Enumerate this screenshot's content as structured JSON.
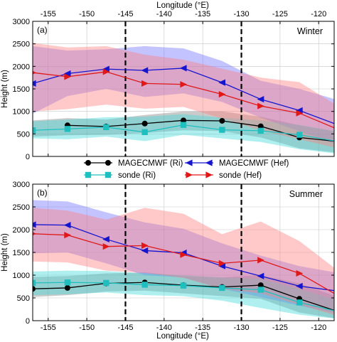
{
  "figure": {
    "top_axis_label": "Longitude (°E)",
    "bottom_axis_label": "Longitude (°E)",
    "legend": {
      "entries": [
        {
          "label": "MAGECMWF (Ri)",
          "color": "#000000",
          "marker": "circle"
        },
        {
          "label": "MAGECMWF (Hef)",
          "color": "#1515d0",
          "marker": "left-triangle"
        },
        {
          "label": "sonde (Ri)",
          "color": "#20bfbf",
          "marker": "square"
        },
        {
          "label": "sonde (Hef)",
          "color": "#e01818",
          "marker": "right-triangle"
        }
      ]
    }
  },
  "chart_data": [
    {
      "type": "line",
      "panel_label": "(a)",
      "season_label": "Winter",
      "xlabel": "Longitude (°E)",
      "ylabel": "Height (m)",
      "xlim": [
        -157,
        -118
      ],
      "ylim": [
        0,
        3000
      ],
      "xticks": [
        -155,
        -150,
        -145,
        -140,
        -135,
        -130,
        -125,
        -120
      ],
      "yticks": [
        0,
        500,
        1000,
        1500,
        2000,
        2500,
        3000
      ],
      "grid": true,
      "vertical_dashed_lines": [
        -145,
        -130
      ],
      "series": [
        {
          "name": "MAGECMWF (Ri)",
          "color": "#000000",
          "marker": "circle",
          "x": [
            -152.5,
            -147.5,
            -142.5,
            -137.5,
            -132.5,
            -127.5,
            -122.5,
            -117.5
          ],
          "values": [
            690,
            665,
            730,
            800,
            790,
            670,
            420,
            330
          ],
          "band_x": [
            -157,
            -152.5,
            -147.5,
            -142.5,
            -137.5,
            -132.5,
            -127.5,
            -122.5,
            -117.5
          ],
          "band_lower": [
            440,
            470,
            480,
            520,
            580,
            560,
            420,
            180,
            80
          ],
          "band_upper": [
            800,
            850,
            820,
            920,
            1000,
            1000,
            880,
            690,
            540
          ],
          "band_color": "#808080"
        },
        {
          "name": "MAGECMWF (Hef)",
          "color": "#1515d0",
          "marker": "left-triangle",
          "x": [
            -157,
            -152.5,
            -147.5,
            -142.5,
            -137.5,
            -132.5,
            -127.5,
            -122.5,
            -117.5
          ],
          "values": [
            1620,
            1840,
            1940,
            1910,
            1960,
            1640,
            1270,
            1020,
            700
          ],
          "band_x": [
            -157,
            -152.5,
            -147.5,
            -142.5,
            -137.5,
            -132.5,
            -127.5,
            -122.5,
            -117.5
          ],
          "band_lower": [
            950,
            1340,
            1500,
            1320,
            1400,
            1210,
            860,
            560,
            250
          ],
          "band_upper": [
            2450,
            2350,
            2380,
            2450,
            2400,
            2120,
            1680,
            1500,
            1250
          ],
          "band_color": "#6f6fff"
        },
        {
          "name": "sonde (Ri)",
          "color": "#20bfbf",
          "marker": "square",
          "x": [
            -157,
            -152.5,
            -147.5,
            -142.5,
            -137.5,
            -132.5,
            -127.5,
            -122.5,
            -117.5
          ],
          "values": [
            580,
            610,
            650,
            540,
            700,
            590,
            570,
            480,
            330
          ],
          "band_x": [
            -157,
            -152.5,
            -147.5,
            -142.5,
            -137.5,
            -132.5,
            -127.5,
            -122.5,
            -117.5
          ],
          "band_lower": [
            400,
            380,
            440,
            340,
            480,
            400,
            320,
            160,
            60
          ],
          "band_upper": [
            780,
            820,
            870,
            880,
            940,
            860,
            800,
            700,
            560
          ],
          "band_color": "#40d8d8"
        },
        {
          "name": "sonde (Hef)",
          "color": "#e01818",
          "marker": "right-triangle",
          "x": [
            -157,
            -152.5,
            -147.5,
            -142.5,
            -137.5,
            -132.5,
            -127.5,
            -122.5,
            -117.5
          ],
          "values": [
            1860,
            1770,
            1880,
            1620,
            1600,
            1380,
            1120,
            960,
            600
          ],
          "band_x": [
            -157,
            -152.5,
            -147.5,
            -142.5,
            -137.5,
            -132.5,
            -127.5,
            -122.5,
            -117.5
          ],
          "band_lower": [
            1000,
            1050,
            1150,
            1060,
            1100,
            840,
            580,
            380,
            180
          ],
          "band_upper": [
            2520,
            2420,
            2450,
            2260,
            2150,
            1950,
            1750,
            1650,
            1120
          ],
          "band_color": "#ff7f7f"
        }
      ]
    },
    {
      "type": "line",
      "panel_label": "(b)",
      "season_label": "Summer",
      "xlabel": "Longitude (°E)",
      "ylabel": "Height (m)",
      "xlim": [
        -157,
        -118
      ],
      "ylim": [
        0,
        3000
      ],
      "xticks": [
        -155,
        -150,
        -145,
        -140,
        -135,
        -130,
        -125,
        -120
      ],
      "yticks": [
        0,
        500,
        1000,
        1500,
        2000,
        2500,
        3000
      ],
      "grid": true,
      "vertical_dashed_lines": [
        -145,
        -130
      ],
      "series": [
        {
          "name": "MAGECMWF (Ri)",
          "color": "#000000",
          "marker": "circle",
          "x": [
            -157,
            -152.5,
            -147.5,
            -142.5,
            -137.5,
            -132.5,
            -127.5,
            -122.5,
            -117.5
          ],
          "values": [
            700,
            720,
            820,
            840,
            780,
            740,
            780,
            480,
            200
          ],
          "band_x": [
            -157,
            -152.5,
            -147.5,
            -142.5,
            -137.5,
            -132.5,
            -127.5,
            -122.5,
            -117.5
          ],
          "band_lower": [
            520,
            560,
            640,
            660,
            600,
            540,
            480,
            180,
            40
          ],
          "band_upper": [
            960,
            980,
            1040,
            1060,
            980,
            950,
            1000,
            820,
            520
          ],
          "band_color": "#808080"
        },
        {
          "name": "MAGECMWF (Hef)",
          "color": "#1515d0",
          "marker": "left-triangle",
          "x": [
            -157,
            -152.5,
            -147.5,
            -142.5,
            -137.5,
            -132.5,
            -127.5,
            -122.5,
            -117.5
          ],
          "values": [
            2110,
            2100,
            1790,
            1540,
            1490,
            1200,
            980,
            760,
            650
          ],
          "band_x": [
            -157,
            -152.5,
            -147.5,
            -142.5,
            -137.5,
            -132.5,
            -127.5,
            -122.5,
            -117.5
          ],
          "band_lower": [
            1480,
            1500,
            1260,
            1000,
            950,
            700,
            520,
            330,
            150
          ],
          "band_upper": [
            2650,
            2620,
            2380,
            2160,
            2020,
            1700,
            1430,
            1200,
            1050
          ],
          "band_color": "#6f6fff"
        },
        {
          "name": "sonde (Ri)",
          "color": "#20bfbf",
          "marker": "square",
          "x": [
            -157,
            -152.5,
            -147.5,
            -142.5,
            -137.5,
            -132.5,
            -127.5,
            -122.5,
            -117.5
          ],
          "values": [
            830,
            840,
            830,
            790,
            770,
            720,
            680,
            400,
            200
          ],
          "band_x": [
            -157,
            -152.5,
            -147.5,
            -142.5,
            -137.5,
            -132.5,
            -127.5,
            -122.5,
            -117.5
          ],
          "band_lower": [
            560,
            580,
            620,
            560,
            540,
            440,
            280,
            130,
            40
          ],
          "band_upper": [
            1080,
            1100,
            1090,
            1040,
            1000,
            950,
            920,
            700,
            450
          ],
          "band_color": "#40d8d8"
        },
        {
          "name": "sonde (Hef)",
          "color": "#e01818",
          "marker": "right-triangle",
          "x": [
            -157,
            -152.5,
            -147.5,
            -142.5,
            -137.5,
            -132.5,
            -127.5,
            -122.5,
            -117.5
          ],
          "values": [
            1910,
            1880,
            1630,
            1650,
            1450,
            1260,
            1330,
            1040,
            550
          ],
          "band_x": [
            -157,
            -152.5,
            -147.5,
            -142.5,
            -137.5,
            -132.5,
            -127.5,
            -122.5,
            -117.5
          ],
          "band_lower": [
            1300,
            1280,
            1100,
            1050,
            940,
            700,
            600,
            350,
            100
          ],
          "band_upper": [
            2480,
            2420,
            2220,
            2480,
            2350,
            1900,
            2180,
            1750,
            1100
          ],
          "band_color": "#ff7f7f"
        }
      ]
    }
  ]
}
